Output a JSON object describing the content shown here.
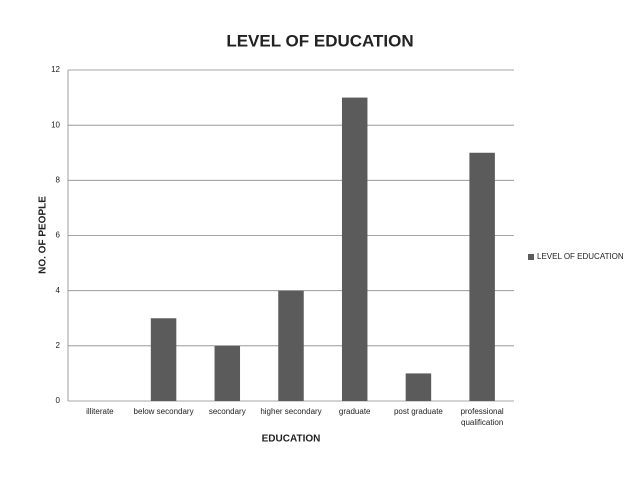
{
  "chart_data": {
    "type": "bar",
    "title": "LEVEL OF EDUCATION",
    "x_label": "EDUCATION",
    "y_label": "NO. OF PEOPLE",
    "categories": [
      "illiterate",
      "below secondary",
      "secondary",
      "higher secondary",
      "graduate",
      "post graduate",
      "professional qualification"
    ],
    "series": [
      {
        "name": "LEVEL OF EDUCATION",
        "color": "#5b5b5b",
        "values": [
          0,
          3,
          2,
          4,
          11,
          1,
          9
        ]
      }
    ],
    "ylim": [
      0,
      12
    ],
    "yticks": [
      0,
      2,
      4,
      6,
      8,
      10,
      12
    ],
    "grid": true,
    "legend": "right"
  }
}
